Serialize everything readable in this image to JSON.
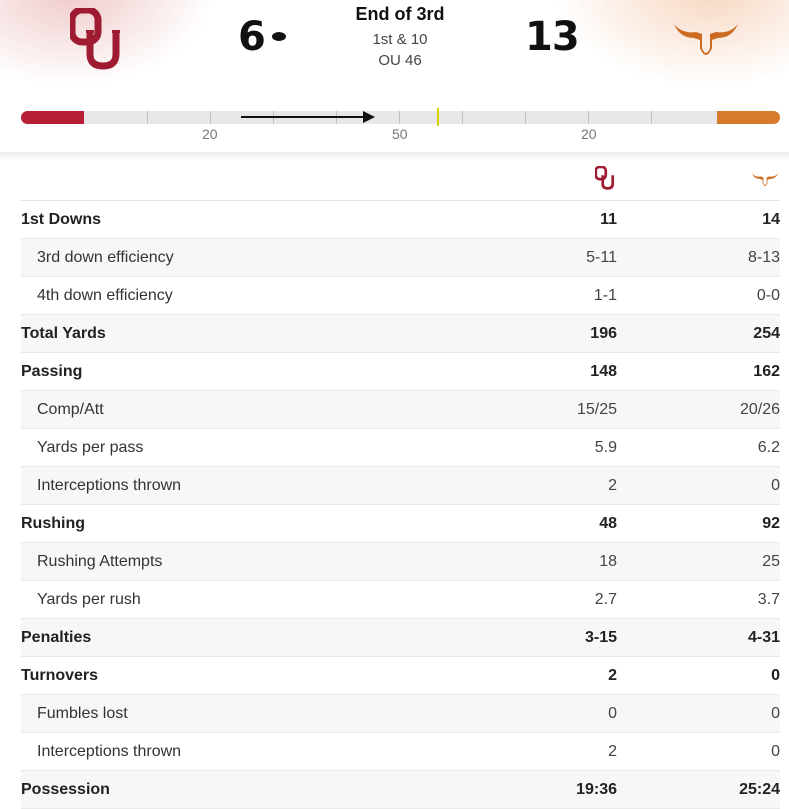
{
  "game": {
    "home_score": "6",
    "away_score": "13",
    "status": "End of 3rd",
    "down_distance": "1st & 10",
    "ball_on": "OU 46",
    "home_team_icon": "ou-logo-icon",
    "away_team_icon": "longhorn-logo-icon",
    "possession": "home"
  },
  "field": {
    "yard_labels": [
      "20",
      "50",
      "20"
    ],
    "home_color": "#b61f35",
    "away_color": "#d87a2c",
    "line_to_gain_color": "#d8d100"
  },
  "stats": {
    "rows": [
      {
        "label": "1st Downs",
        "home": "11",
        "away": "14",
        "type": "main"
      },
      {
        "label": "3rd down efficiency",
        "home": "5-11",
        "away": "8-13",
        "type": "sub"
      },
      {
        "label": "4th down efficiency",
        "home": "1-1",
        "away": "0-0",
        "type": "sub"
      },
      {
        "label": "Total Yards",
        "home": "196",
        "away": "254",
        "type": "main"
      },
      {
        "label": "Passing",
        "home": "148",
        "away": "162",
        "type": "main"
      },
      {
        "label": "Comp/Att",
        "home": "15/25",
        "away": "20/26",
        "type": "sub"
      },
      {
        "label": "Yards per pass",
        "home": "5.9",
        "away": "6.2",
        "type": "sub"
      },
      {
        "label": "Interceptions thrown",
        "home": "2",
        "away": "0",
        "type": "sub"
      },
      {
        "label": "Rushing",
        "home": "48",
        "away": "92",
        "type": "main"
      },
      {
        "label": "Rushing Attempts",
        "home": "18",
        "away": "25",
        "type": "sub"
      },
      {
        "label": "Yards per rush",
        "home": "2.7",
        "away": "3.7",
        "type": "sub"
      },
      {
        "label": "Penalties",
        "home": "3-15",
        "away": "4-31",
        "type": "main"
      },
      {
        "label": "Turnovers",
        "home": "2",
        "away": "0",
        "type": "main"
      },
      {
        "label": "Fumbles lost",
        "home": "0",
        "away": "0",
        "type": "sub"
      },
      {
        "label": "Interceptions thrown",
        "home": "2",
        "away": "0",
        "type": "sub"
      },
      {
        "label": "Possession",
        "home": "19:36",
        "away": "25:24",
        "type": "main"
      }
    ]
  }
}
